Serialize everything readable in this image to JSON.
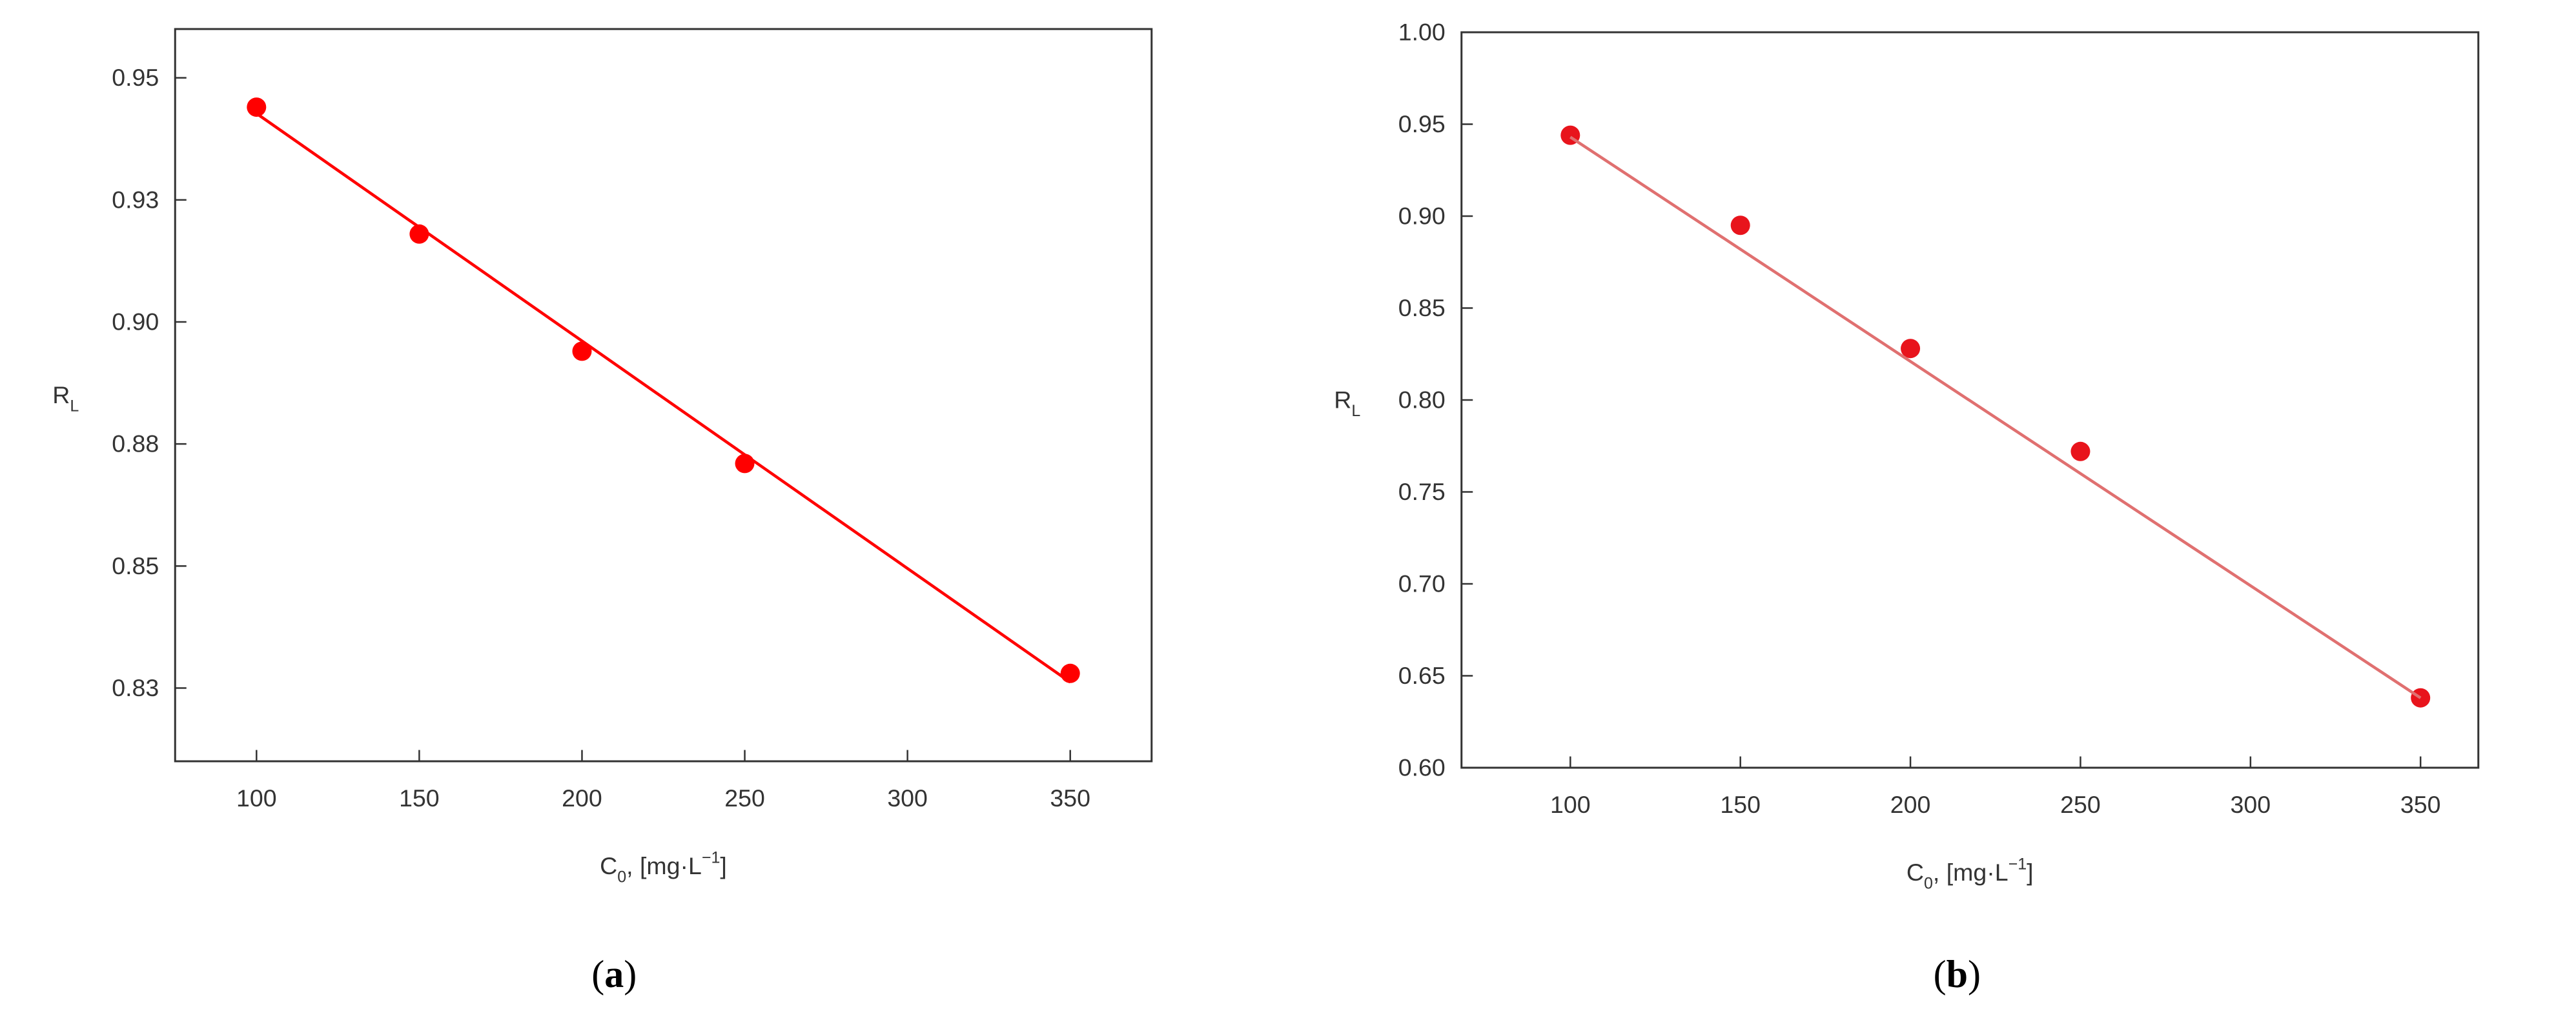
{
  "chart_data": [
    {
      "type": "scatter",
      "caption": [
        "(",
        "a",
        ")"
      ],
      "x_label": [
        "C",
        "0",
        ", [mg·L",
        "−1",
        "]"
      ],
      "y_label": [
        "R",
        "L"
      ],
      "xlim": [
        75,
        375
      ],
      "xticks": [
        100,
        150,
        200,
        250,
        300,
        350
      ],
      "ylim": [
        0.81,
        0.96
      ],
      "yticks": [
        {
          "value": 0.825,
          "label": "0.83"
        },
        0.85,
        {
          "value": 0.875,
          "label": "0.88"
        },
        {
          "value": 0.9,
          "label": "0.90"
        },
        {
          "value": 0.925,
          "label": "0.93"
        },
        0.95
      ],
      "series": [
        {
          "mode": "markers",
          "color": "#ff0000",
          "x": [
            100,
            150,
            200,
            250,
            350
          ],
          "values": [
            0.944,
            0.918,
            0.894,
            0.871,
            0.828
          ]
        },
        {
          "mode": "line",
          "color": "#ff0000",
          "x": [
            100,
            350
          ],
          "values": [
            0.9427,
            0.8262
          ]
        }
      ]
    },
    {
      "type": "scatter",
      "caption": [
        "(",
        "b",
        ")"
      ],
      "x_label": [
        "C",
        "0",
        ", [mg·L",
        "−1",
        "]"
      ],
      "y_label": [
        "R",
        "L"
      ],
      "xlim": [
        68,
        367
      ],
      "xticks": [
        100,
        150,
        200,
        250,
        300,
        350
      ],
      "ylim": [
        0.6,
        1.0
      ],
      "yticks": [
        {
          "value": 0.6,
          "label": "0.60"
        },
        0.65,
        {
          "value": 0.7,
          "label": "0.70"
        },
        0.75,
        {
          "value": 0.8,
          "label": "0.80"
        },
        0.85,
        {
          "value": 0.9,
          "label": "0.90"
        },
        0.95,
        {
          "value": 1.0,
          "label": "1.00"
        }
      ],
      "series": [
        {
          "mode": "markers",
          "color": "#e8141c",
          "x": [
            100,
            150,
            200,
            250,
            350
          ],
          "values": [
            0.944,
            0.895,
            0.828,
            0.772,
            0.638
          ]
        },
        {
          "mode": "line",
          "color": "#e07070",
          "x": [
            100,
            350
          ],
          "values": [
            0.943,
            0.638
          ]
        }
      ]
    }
  ]
}
